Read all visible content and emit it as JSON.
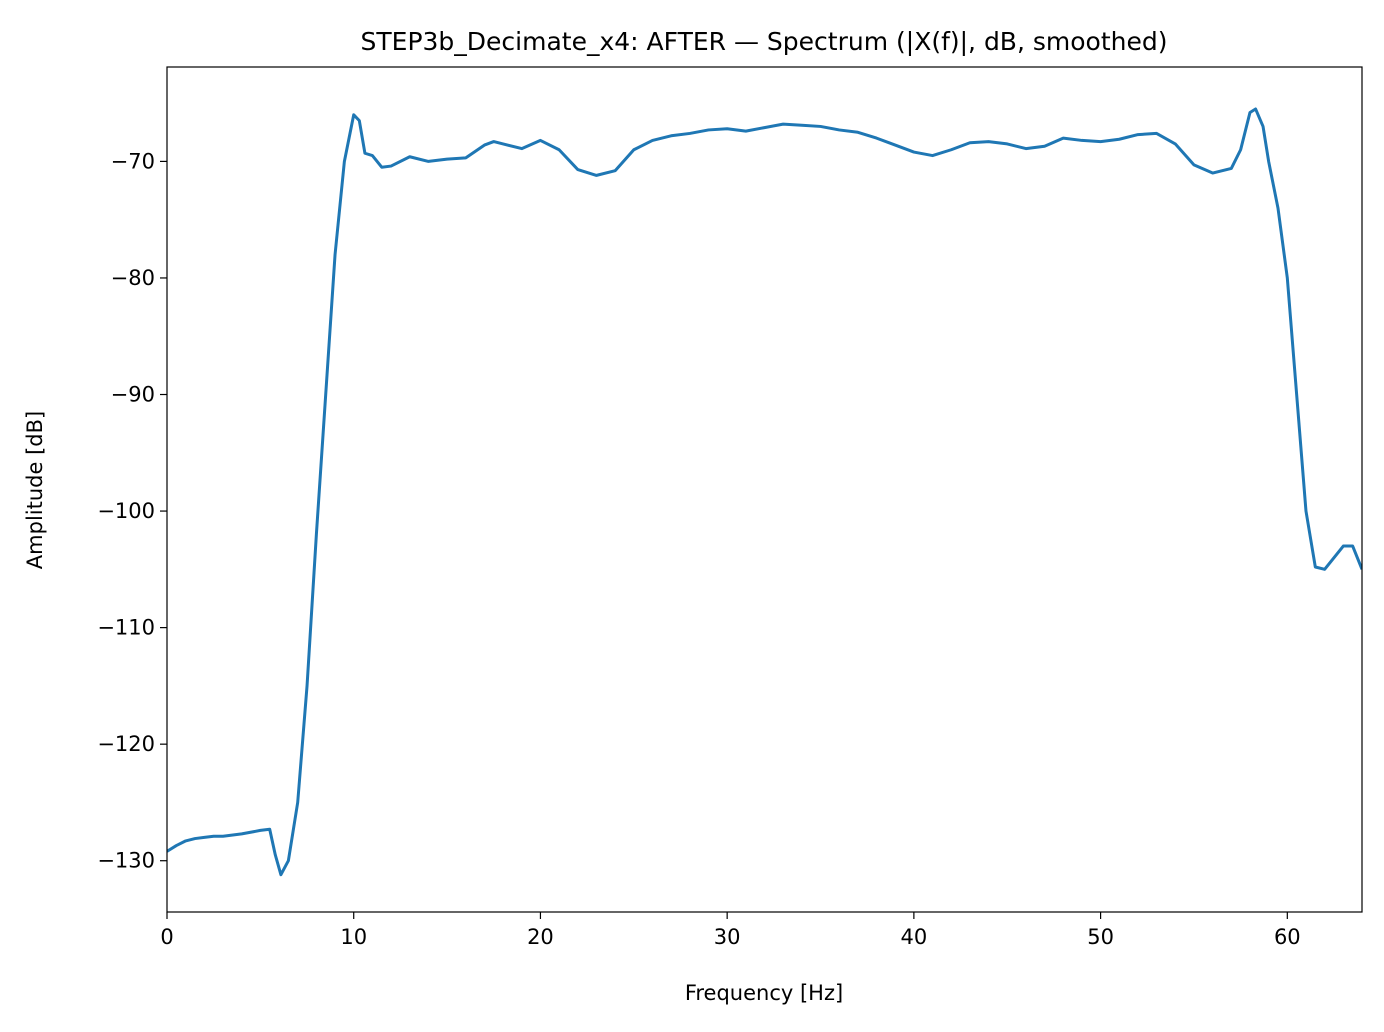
{
  "chart_data": {
    "type": "line",
    "title": "STEP3b_Decimate_x4: AFTER — Spectrum (|X(f)|, dB, smoothed)",
    "xlabel": "Frequency [Hz]",
    "ylabel": "Amplitude [dB]",
    "x": [
      0,
      0.5,
      1,
      1.5,
      2,
      2.5,
      3,
      4,
      5,
      5.5,
      5.8,
      6.1,
      6.5,
      7,
      7.5,
      8,
      8.5,
      9,
      9.5,
      10,
      10.3,
      10.6,
      11,
      11.5,
      12,
      13,
      14,
      15,
      16,
      17,
      17.5,
      18,
      19,
      20,
      21,
      22,
      23,
      24,
      25,
      26,
      27,
      28,
      29,
      30,
      31,
      32,
      33,
      34,
      35,
      36,
      37,
      38,
      39,
      40,
      41,
      42,
      43,
      44,
      45,
      46,
      47,
      48,
      49,
      50,
      51,
      52,
      53,
      54,
      55,
      56,
      57,
      57.5,
      58,
      58.3,
      58.7,
      59,
      59.5,
      60,
      60.5,
      61,
      61.5,
      62,
      62.5,
      63,
      63.5,
      64
    ],
    "series": [
      {
        "name": "spectrum",
        "color": "#1f77b4",
        "values": [
          -129.2,
          -128.7,
          -128.3,
          -128.1,
          -128.0,
          -127.9,
          -127.9,
          -127.7,
          -127.4,
          -127.3,
          -129.5,
          -131.2,
          -130,
          -125,
          -115,
          -102,
          -90,
          -78,
          -70,
          -66,
          -66.5,
          -69.3,
          -69.5,
          -70.5,
          -70.4,
          -69.6,
          -70.0,
          -69.8,
          -69.7,
          -68.6,
          -68.3,
          -68.5,
          -68.9,
          -68.2,
          -69.0,
          -70.7,
          -71.2,
          -70.8,
          -69.0,
          -68.2,
          -67.8,
          -67.6,
          -67.3,
          -67.2,
          -67.4,
          -67.1,
          -66.8,
          -66.9,
          -67.0,
          -67.3,
          -67.5,
          -68.0,
          -68.6,
          -69.2,
          -69.5,
          -69.0,
          -68.4,
          -68.3,
          -68.5,
          -68.9,
          -68.7,
          -68.0,
          -68.2,
          -68.3,
          -68.1,
          -67.7,
          -67.6,
          -68.5,
          -70.3,
          -71.0,
          -70.6,
          -69.0,
          -65.8,
          -65.5,
          -67,
          -70,
          -74,
          -80,
          -90,
          -100,
          -104.8,
          -105,
          -104,
          -103,
          -103,
          -105
        ]
      }
    ],
    "xlim": [
      0,
      64
    ],
    "ylim": [
      -134.4,
      -61.9
    ],
    "xticks": [
      0,
      10,
      20,
      30,
      40,
      50,
      60
    ],
    "yticks": [
      {
        "value": -130,
        "label": "−130"
      },
      {
        "value": -120,
        "label": "−120"
      },
      {
        "value": -110,
        "label": "−110"
      },
      {
        "value": -100,
        "label": "−100"
      },
      {
        "value": -90,
        "label": "−90"
      },
      {
        "value": -80,
        "label": "−80"
      },
      {
        "value": -70,
        "label": "−70"
      }
    ],
    "grid": false
  }
}
